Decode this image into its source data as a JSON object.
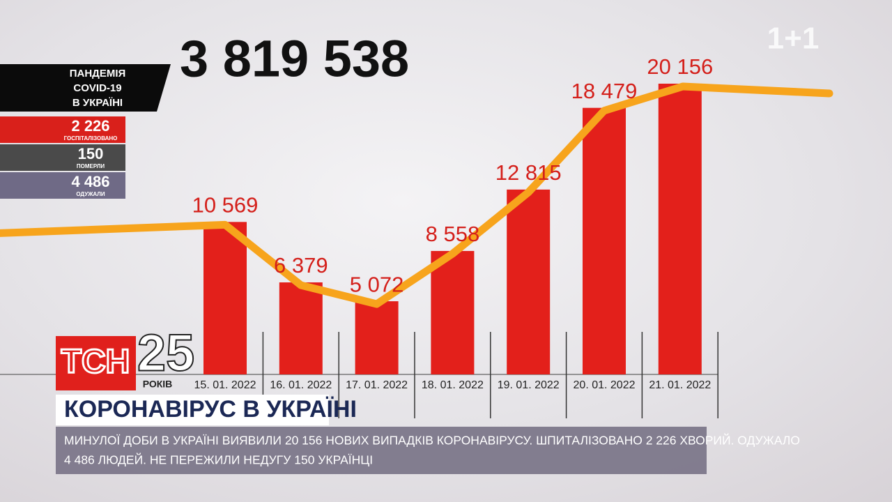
{
  "broadcast": {
    "logo": "1+1",
    "total": "3 819 538",
    "panel": {
      "title_lines": [
        "ПАНДЕМІЯ",
        "COVID-19",
        "В УКРАЇНІ"
      ],
      "stats": [
        {
          "value": "2 226",
          "label": "ГОСПІТАЛІЗОВАНО",
          "color": "#d9201b"
        },
        {
          "value": "150",
          "label": "ПОМЕРЛИ",
          "color": "#4a4a4a"
        },
        {
          "value": "4 486",
          "label": "ОДУЖАЛИ",
          "color": "#6f6a86"
        }
      ]
    },
    "brand": {
      "name": "ТСН",
      "years": "25",
      "years_word": "РОКІВ"
    },
    "headline": "КОРОНАВІРУС В УКРАЇНІ",
    "ticker": [
      "МИНУЛОЇ ДОБИ В УКРАЇНІ ВИЯВИЛИ 20 156 НОВИХ ВИПАДКІВ КОРОНАВІРУСУ. ШПИТАЛІЗОВАНО 2 226 ХВОРИЙ. ОДУЖАЛО",
      "4 486 ЛЮДЕЙ. НЕ ПЕРЕЖИЛИ НЕДУГУ 150 УКРАЇНЦІ"
    ]
  },
  "chart_data": {
    "type": "bar",
    "categories": [
      "15. 01. 2022",
      "16. 01. 2022",
      "17. 01. 2022",
      "18. 01. 2022",
      "19. 01. 2022",
      "20. 01. 2022",
      "21. 01. 2022"
    ],
    "values": [
      10569,
      6379,
      5072,
      8558,
      12815,
      18479,
      20156
    ],
    "value_labels": [
      "10 569",
      "6 379",
      "5 072",
      "8 558",
      "12 815",
      "18 479",
      "20 156"
    ],
    "color": "#e3201b",
    "line_color": "#f7a41c"
  }
}
